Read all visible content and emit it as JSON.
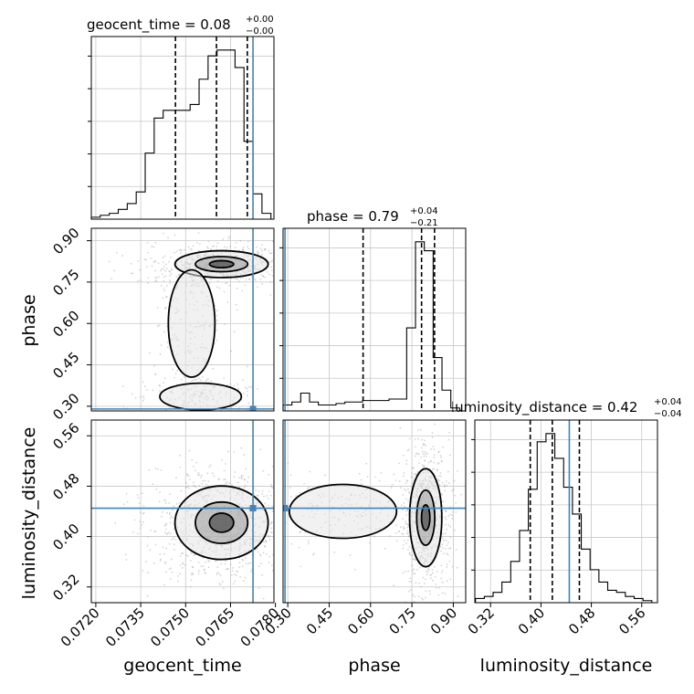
{
  "chart_data": {
    "type": "corner",
    "parameters": [
      "geocent_time",
      "phase",
      "luminosity_distance"
    ],
    "axis_labels": {
      "geocent_time": "geocent_time",
      "phase": "phase",
      "luminosity_distance": "luminosity_distance"
    },
    "truths": {
      "geocent_time": 0.07725,
      "phase": 0.29,
      "luminosity_distance": 0.445
    },
    "titles": {
      "geocent_time": {
        "label": "geocent_time = 0.08",
        "plus": "+0.00",
        "minus": "−0.00"
      },
      "phase": {
        "label": "phase = 0.79",
        "plus": "+0.04",
        "minus": "−0.21"
      },
      "luminosity_distance": {
        "label": "luminosity_distance = 0.42",
        "plus": "+0.04",
        "minus": "−0.04"
      }
    },
    "ranges": {
      "geocent_time": [
        0.07185,
        0.07795
      ],
      "phase": [
        0.283,
        0.945
      ],
      "luminosity_distance": [
        0.295,
        0.585
      ]
    },
    "ticks": {
      "geocent_time": [
        "0.0720",
        "0.0735",
        "0.0750",
        "0.0765",
        "0.0780"
      ],
      "phase": [
        "0.30",
        "0.45",
        "0.60",
        "0.75",
        "0.90"
      ],
      "luminosity_distance": [
        "0.32",
        "0.40",
        "0.48",
        "0.56"
      ]
    },
    "quantiles": {
      "geocent_time": [
        0.07466,
        0.07603,
        0.07706
      ],
      "phase": [
        0.573,
        0.785,
        0.832
      ],
      "luminosity_distance": [
        0.383,
        0.418,
        0.461
      ]
    },
    "histograms": {
      "geocent_time": {
        "edges": [
          0.07185,
          0.07215,
          0.07245,
          0.07275,
          0.07305,
          0.07335,
          0.07365,
          0.07395,
          0.07425,
          0.07455,
          0.07485,
          0.07515,
          0.07545,
          0.07575,
          0.07605,
          0.07635,
          0.07665,
          0.07695,
          0.07725,
          0.07755,
          0.07785
        ],
        "counts": [
          1,
          2,
          3,
          5,
          8,
          14,
          34,
          52,
          56,
          56,
          56,
          59,
          72,
          84,
          87,
          87,
          78,
          40,
          13,
          3
        ]
      },
      "phase": {
        "edges": [
          0.283,
          0.315,
          0.347,
          0.379,
          0.411,
          0.443,
          0.475,
          0.507,
          0.539,
          0.571,
          0.603,
          0.635,
          0.667,
          0.699,
          0.731,
          0.763,
          0.795,
          0.827,
          0.859,
          0.891,
          0.923
        ],
        "counts": [
          2,
          3,
          6,
          3,
          2,
          2,
          2.5,
          3,
          3,
          3.5,
          3.5,
          3.5,
          4,
          4,
          28,
          57,
          54,
          18,
          7,
          1
        ]
      },
      "luminosity_distance": {
        "edges": [
          0.296,
          0.31,
          0.324,
          0.338,
          0.352,
          0.366,
          0.38,
          0.394,
          0.408,
          0.422,
          0.436,
          0.45,
          0.464,
          0.478,
          0.492,
          0.506,
          0.52,
          0.534,
          0.548,
          0.562,
          0.576
        ],
        "counts": [
          2,
          3,
          5,
          10,
          20,
          35,
          55,
          78,
          82,
          70,
          56,
          43,
          26,
          16,
          10,
          6,
          5,
          3,
          2,
          1
        ]
      }
    },
    "pairs": [
      {
        "x": "geocent_time",
        "y": "phase",
        "blobs": [
          {
            "cx": 0.0762,
            "cy": 0.815,
            "sx": 0.0008,
            "sy": 0.025,
            "w": 1.0
          },
          {
            "cx": 0.0752,
            "cy": 0.6,
            "sx": 0.0004,
            "sy": 0.1,
            "w": 0.35
          },
          {
            "cx": 0.0755,
            "cy": 0.335,
            "sx": 0.0007,
            "sy": 0.025,
            "w": 0.25
          }
        ]
      },
      {
        "x": "geocent_time",
        "y": "luminosity_distance",
        "blobs": [
          {
            "cx": 0.0762,
            "cy": 0.422,
            "sx": 0.0008,
            "sy": 0.03,
            "w": 1.0
          }
        ]
      },
      {
        "x": "phase",
        "y": "luminosity_distance",
        "blobs": [
          {
            "cx": 0.8,
            "cy": 0.43,
            "sx": 0.03,
            "sy": 0.04,
            "w": 1.0
          },
          {
            "cx": 0.5,
            "cy": 0.44,
            "sx": 0.1,
            "sy": 0.022,
            "w": 0.3
          }
        ]
      }
    ],
    "grid": true,
    "colors": {
      "truth": "#4682b4",
      "hist": "#000000",
      "points": "#a0a0a0"
    }
  }
}
